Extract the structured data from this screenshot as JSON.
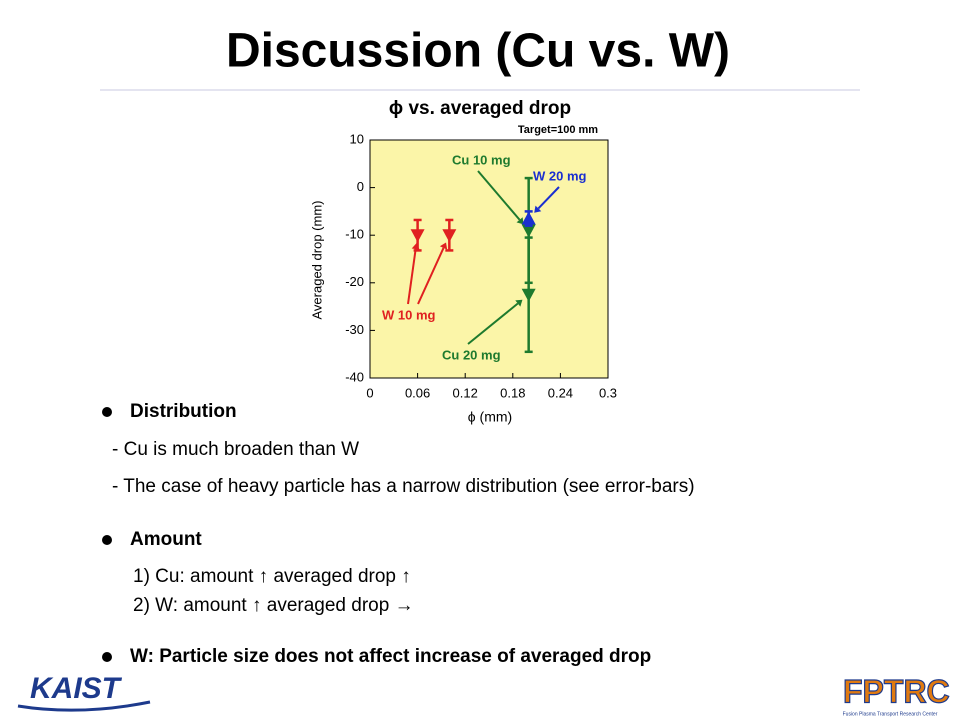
{
  "slide": {
    "title": "Discussion (Cu vs. W)",
    "sections": [
      {
        "heading": "Distribution",
        "items": [
          "- Cu is much broaden than W",
          "- The case of heavy particle has a narrow distribution (see error-bars)"
        ]
      },
      {
        "heading": "Amount",
        "items": [
          "1) Cu: amount ↑ averaged drop ↑",
          "2) W: amount ↑ averaged drop →"
        ]
      },
      {
        "heading": "W: Particle size does not affect increase of averaged drop",
        "items": []
      }
    ],
    "logos": {
      "left": "KAIST",
      "right": "FPTRC",
      "right_sub": "Fusion Plasma Transport Research Center"
    }
  },
  "chart_data": {
    "type": "errorbar",
    "title": "ϕ vs. averaged drop",
    "annotation": "Target=100 mm",
    "xlabel": "ϕ (mm)",
    "ylabel": "Averaged drop (mm)",
    "xlim": [
      0,
      0.3
    ],
    "ylim": [
      -40,
      10
    ],
    "xticks": [
      0,
      0.06,
      0.12,
      0.18,
      0.24,
      0.3
    ],
    "yticks": [
      10,
      0,
      -10,
      -20,
      -30,
      -40
    ],
    "background": "#fbf5a8",
    "series": [
      {
        "name": "W 10 mg",
        "color": "#e02020",
        "marker": "down",
        "x": [
          0.06,
          0.1
        ],
        "values": [
          -10,
          -10
        ],
        "errors": [
          3.2,
          3.2
        ]
      },
      {
        "name": "Cu 10 mg",
        "color": "#1e7a2e",
        "marker": "down",
        "x": [
          0.2
        ],
        "values": [
          -9
        ],
        "errors": [
          11
        ]
      },
      {
        "name": "W 20 mg",
        "color": "#1a2fd0",
        "marker": "up",
        "x": [
          0.2
        ],
        "values": [
          -6.5
        ],
        "errors": [
          1.5
        ]
      },
      {
        "name": "Cu 20 mg",
        "color": "#1e7a2e",
        "marker": "down",
        "x": [
          0.2
        ],
        "values": [
          -22.5
        ],
        "errors": [
          12
        ]
      }
    ]
  }
}
